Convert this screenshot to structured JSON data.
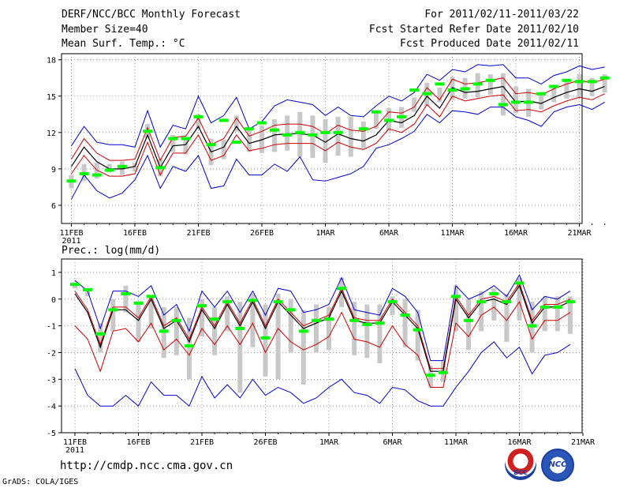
{
  "header": {
    "title": "DERF/NCC/BCC Monthly Forecast",
    "member_size": "Member Size=40",
    "variable1": "Mean Surf. Temp.: °C",
    "period": "For 2011/02/11-2011/03/22",
    "refer_date": "Fcst Started Refer Date 2011/02/10",
    "produced_date": "Fcst Produced Date 2011/02/11"
  },
  "footer": {
    "url": "http://cmdp.ncc.cma.gov.cn",
    "grads": "GrADS: COLA/IGES",
    "logo1_text": "BCC",
    "logo2_text": "NCC"
  },
  "colors": {
    "ensemble_mean": "#000000",
    "member_range": "#cc0000",
    "extreme": "#0000cc",
    "observation": "#00ff00",
    "spread_bar": "#c8c8c8"
  },
  "chart_data": [
    {
      "type": "line",
      "title": "Mean Surf. Temp.: °C",
      "x_tick_labels": [
        "11FEB",
        "16FEB",
        "21FEB",
        "26FEB",
        "1MAR",
        "6MAR",
        "11MAR",
        "16MAR",
        "21MAR"
      ],
      "x_year_label": "2011",
      "ylim": [
        4.5,
        18.5
      ],
      "y_ticks": [
        6,
        9,
        12,
        15,
        18
      ],
      "grid": true,
      "series": [
        {
          "name": "ensemble_mean",
          "values": [
            9.2,
            10.8,
            9.6,
            9.0,
            9.0,
            9.2,
            11.8,
            9.1,
            10.9,
            11.0,
            12.5,
            10.4,
            10.8,
            12.5,
            11.1,
            11.4,
            11.8,
            11.9,
            11.9,
            11.8,
            11.2,
            11.9,
            11.5,
            11.3,
            11.8,
            13.0,
            12.8,
            13.4,
            15.0,
            14.0,
            15.7,
            15.3,
            15.4,
            15.6,
            15.8,
            14.5,
            14.6,
            14.4,
            14.9,
            15.3,
            15.6,
            15.4,
            15.8
          ]
        },
        {
          "name": "upper_range",
          "values": [
            9.8,
            11.5,
            10.3,
            9.7,
            9.7,
            9.8,
            12.4,
            9.7,
            11.6,
            11.7,
            13.2,
            11.0,
            11.5,
            13.2,
            11.7,
            12.1,
            12.6,
            12.7,
            12.7,
            12.5,
            11.9,
            12.6,
            12.2,
            12.1,
            12.5,
            13.7,
            13.6,
            14.1,
            15.7,
            14.7,
            16.4,
            16.0,
            16.1,
            16.3,
            16.5,
            15.2,
            15.3,
            15.1,
            15.6,
            16.0,
            16.3,
            16.1,
            16.4
          ]
        },
        {
          "name": "lower_range",
          "values": [
            8.6,
            10.1,
            8.9,
            8.4,
            8.4,
            8.6,
            11.2,
            8.5,
            10.3,
            10.3,
            11.8,
            9.7,
            10.1,
            11.8,
            10.5,
            10.7,
            11.0,
            11.1,
            11.1,
            11.1,
            10.5,
            11.2,
            10.8,
            10.6,
            11.1,
            12.3,
            12.0,
            12.7,
            14.3,
            13.3,
            15.0,
            14.6,
            14.8,
            15.0,
            15.1,
            13.8,
            13.9,
            13.7,
            14.2,
            14.6,
            14.9,
            14.7,
            15.2
          ]
        },
        {
          "name": "upper_extreme",
          "values": [
            10.9,
            12.5,
            11.2,
            11.0,
            11.0,
            10.8,
            13.8,
            10.8,
            12.6,
            12.3,
            15.0,
            12.8,
            13.4,
            14.9,
            12.3,
            12.9,
            14.2,
            14.7,
            14.5,
            14.3,
            13.4,
            14.1,
            13.4,
            13.3,
            14.2,
            15.0,
            14.6,
            15.3,
            16.8,
            16.3,
            17.2,
            17.0,
            17.6,
            17.5,
            17.6,
            16.5,
            16.5,
            16.0,
            16.7,
            17.0,
            17.5,
            17.2,
            17.4
          ]
        },
        {
          "name": "lower_extreme",
          "values": [
            6.5,
            8.5,
            7.2,
            6.6,
            7.0,
            8.1,
            10.1,
            7.4,
            9.2,
            8.8,
            10.1,
            7.4,
            7.6,
            9.8,
            8.5,
            8.5,
            9.4,
            8.8,
            10.0,
            8.1,
            8.0,
            8.3,
            8.6,
            9.2,
            10.7,
            11.0,
            11.5,
            12.1,
            13.5,
            12.8,
            13.8,
            13.7,
            13.5,
            14.1,
            14.1,
            13.3,
            13.0,
            12.5,
            13.7,
            14.1,
            14.3,
            13.9,
            14.5
          ]
        },
        {
          "name": "observed",
          "values": [
            8.0,
            8.6,
            8.5,
            8.9,
            9.2,
            null,
            12.1,
            9.1,
            11.5,
            11.5,
            13.3,
            11.0,
            13.0,
            11.2,
            12.3,
            12.8,
            12.2,
            11.8,
            12.0,
            11.8,
            12.0,
            12.0,
            null,
            12.3,
            13.7,
            13.0,
            13.3,
            15.5,
            15.2,
            16.0,
            15.5,
            15.6,
            16.0,
            16.3,
            14.3,
            14.5,
            14.5,
            15.2,
            15.8,
            16.3,
            16.2,
            16.2,
            16.5
          ]
        },
        {
          "name": "spread_max",
          "values": [
            8.5,
            9.4,
            9.5,
            9.4,
            9.6,
            9.5,
            12.7,
            9.8,
            11.8,
            11.6,
            13.5,
            11.5,
            11.4,
            13.4,
            12.2,
            12.6,
            13.1,
            13.4,
            13.7,
            13.4,
            13.1,
            13.3,
            13.3,
            12.9,
            13.6,
            14.0,
            14.1,
            14.9,
            16.1,
            15.7,
            16.6,
            16.5,
            16.9,
            16.8,
            16.9,
            15.8,
            15.6,
            15.2,
            15.9,
            16.2,
            16.8,
            16.5,
            16.8
          ]
        },
        {
          "name": "spread_min",
          "values": [
            7.4,
            8.0,
            8.2,
            8.7,
            8.5,
            8.8,
            11.5,
            8.4,
            10.4,
            10.2,
            12.3,
            9.3,
            9.8,
            12.1,
            10.4,
            10.3,
            10.4,
            10.5,
            10.0,
            9.9,
            9.5,
            10.1,
            10.0,
            10.7,
            12.3,
            12.1,
            12.4,
            13.7,
            14.2,
            14.5,
            14.7,
            14.8,
            14.9,
            15.1,
            13.4,
            13.6,
            13.3,
            13.9,
            14.5,
            14.8,
            14.9,
            15.0,
            15.3
          ]
        }
      ]
    },
    {
      "type": "line",
      "title": "Prec.: log(mm/d)",
      "x_tick_labels": [
        "11FEB",
        "16FEB",
        "21FEB",
        "26FEB",
        "1MAR",
        "6MAR",
        "11MAR",
        "16MAR",
        "21MAR"
      ],
      "x_year_label": "2011",
      "ylim": [
        -5,
        1.5
      ],
      "y_ticks": [
        -5,
        -4,
        -3,
        -2,
        -1,
        0,
        1
      ],
      "grid": true,
      "series": [
        {
          "name": "ensemble_mean",
          "values": [
            0.2,
            -0.5,
            -1.8,
            -0.4,
            -0.4,
            -0.8,
            0.0,
            -1.1,
            -0.8,
            -1.6,
            -0.4,
            -1.1,
            -0.2,
            -1.0,
            -0.1,
            -1.1,
            -0.1,
            -0.6,
            -1.1,
            -0.9,
            -0.7,
            0.3,
            -0.8,
            -0.9,
            -0.9,
            -0.1,
            -0.6,
            -1.1,
            -2.7,
            -2.7,
            0.0,
            -0.7,
            -0.1,
            0.0,
            -0.2,
            0.5,
            -0.9,
            -0.3,
            -0.3,
            -0.1
          ]
        },
        {
          "name": "upper_range",
          "values": [
            0.3,
            -0.4,
            -1.7,
            -0.3,
            -0.3,
            -0.7,
            0.1,
            -1.0,
            -0.7,
            -1.5,
            -0.3,
            -1.0,
            -0.1,
            -0.9,
            0.0,
            -1.0,
            0.0,
            -0.5,
            -1.0,
            -0.8,
            -0.6,
            0.4,
            -0.7,
            -0.8,
            -0.8,
            0.0,
            -0.5,
            -1.0,
            -2.6,
            -2.6,
            0.1,
            -0.6,
            0.0,
            0.1,
            -0.1,
            0.6,
            -0.8,
            -0.2,
            -0.2,
            0.0
          ]
        },
        {
          "name": "lower_range",
          "values": [
            -1.0,
            -1.5,
            -2.7,
            -1.2,
            -1.1,
            -1.6,
            -0.9,
            -1.9,
            -1.5,
            -2.1,
            -1.1,
            -1.7,
            -1.0,
            -1.7,
            -0.9,
            -2.0,
            -1.1,
            -1.6,
            -1.9,
            -1.7,
            -1.4,
            -0.5,
            -1.5,
            -1.6,
            -1.8,
            -1.0,
            -1.7,
            -2.1,
            -3.3,
            -3.3,
            -0.9,
            -1.4,
            -0.6,
            -0.3,
            -0.8,
            -0.1,
            -1.5,
            -0.8,
            -0.8,
            -0.5
          ]
        },
        {
          "name": "upper_extreme",
          "values": [
            0.7,
            0.3,
            -1.1,
            0.3,
            0.3,
            0.1,
            0.5,
            -0.6,
            -0.2,
            -1.2,
            0.3,
            -0.3,
            0.3,
            -0.5,
            0.3,
            -0.6,
            0.4,
            0.3,
            -0.5,
            -0.4,
            -0.2,
            0.8,
            -0.4,
            -0.5,
            -0.6,
            0.4,
            0.1,
            -0.5,
            -2.3,
            -2.3,
            0.5,
            0.0,
            0.2,
            0.5,
            0.1,
            0.9,
            -0.4,
            0.1,
            0.0,
            0.3
          ]
        },
        {
          "name": "lower_extreme",
          "values": [
            -2.6,
            -3.6,
            -4.0,
            -4.0,
            -3.6,
            -4.0,
            -3.1,
            -3.6,
            -3.6,
            -4.0,
            -2.9,
            -3.7,
            -3.2,
            -3.7,
            -3.0,
            -3.6,
            -3.3,
            -3.5,
            -3.9,
            -3.7,
            -3.3,
            -3.0,
            -3.5,
            -3.6,
            -3.9,
            -3.3,
            -3.4,
            -3.8,
            -4.0,
            -4.0,
            -3.3,
            -2.7,
            -2.0,
            -1.6,
            -2.2,
            -1.8,
            -2.8,
            -2.1,
            -2.0,
            -1.7
          ]
        },
        {
          "name": "observed",
          "values": [
            0.55,
            0.35,
            -1.3,
            -0.4,
            0.2,
            -0.15,
            0.1,
            -1.2,
            -0.8,
            -1.75,
            -0.25,
            -0.75,
            -0.1,
            -1.1,
            -0.05,
            -1.45,
            -0.1,
            -0.4,
            -1.2,
            -0.8,
            -0.75,
            0.4,
            -0.8,
            -0.95,
            -0.9,
            -0.1,
            -0.6,
            -1.15,
            -2.85,
            -2.75,
            0.1,
            -0.8,
            -0.1,
            0.2,
            -0.1,
            0.6,
            -1.0,
            -0.3,
            -0.3,
            -0.1
          ]
        },
        {
          "name": "spread_max",
          "values": [
            0.6,
            0.4,
            -0.9,
            0.0,
            0.5,
            -0.2,
            0.1,
            -0.3,
            -0.3,
            -0.7,
            0.0,
            -0.3,
            0.1,
            -0.1,
            0.2,
            -0.2,
            0.2,
            0.0,
            -0.4,
            -0.2,
            -0.3,
            0.8,
            -0.1,
            -0.2,
            -0.2,
            0.1,
            0.0,
            -0.4,
            -2.5,
            -2.3,
            0.5,
            0.0,
            0.3,
            0.4,
            0.2,
            0.8,
            -0.1,
            0.1,
            0.1,
            0.1
          ]
        },
        {
          "name": "spread_min",
          "values": [
            0.4,
            0.1,
            -2.0,
            -1.2,
            -0.5,
            -1.6,
            -1.1,
            -2.2,
            -2.1,
            -3.0,
            -1.4,
            -2.1,
            -1.2,
            -3.5,
            -1.8,
            -2.9,
            -3.0,
            -2.0,
            -3.2,
            -2.0,
            -1.9,
            -0.3,
            -2.1,
            -2.2,
            -2.4,
            -0.6,
            -1.8,
            -2.3,
            -3.3,
            -3.1,
            -1.2,
            -1.9,
            -1.2,
            -0.8,
            -1.6,
            -0.8,
            -2.0,
            -1.2,
            -1.2,
            -1.3
          ]
        }
      ]
    }
  ]
}
